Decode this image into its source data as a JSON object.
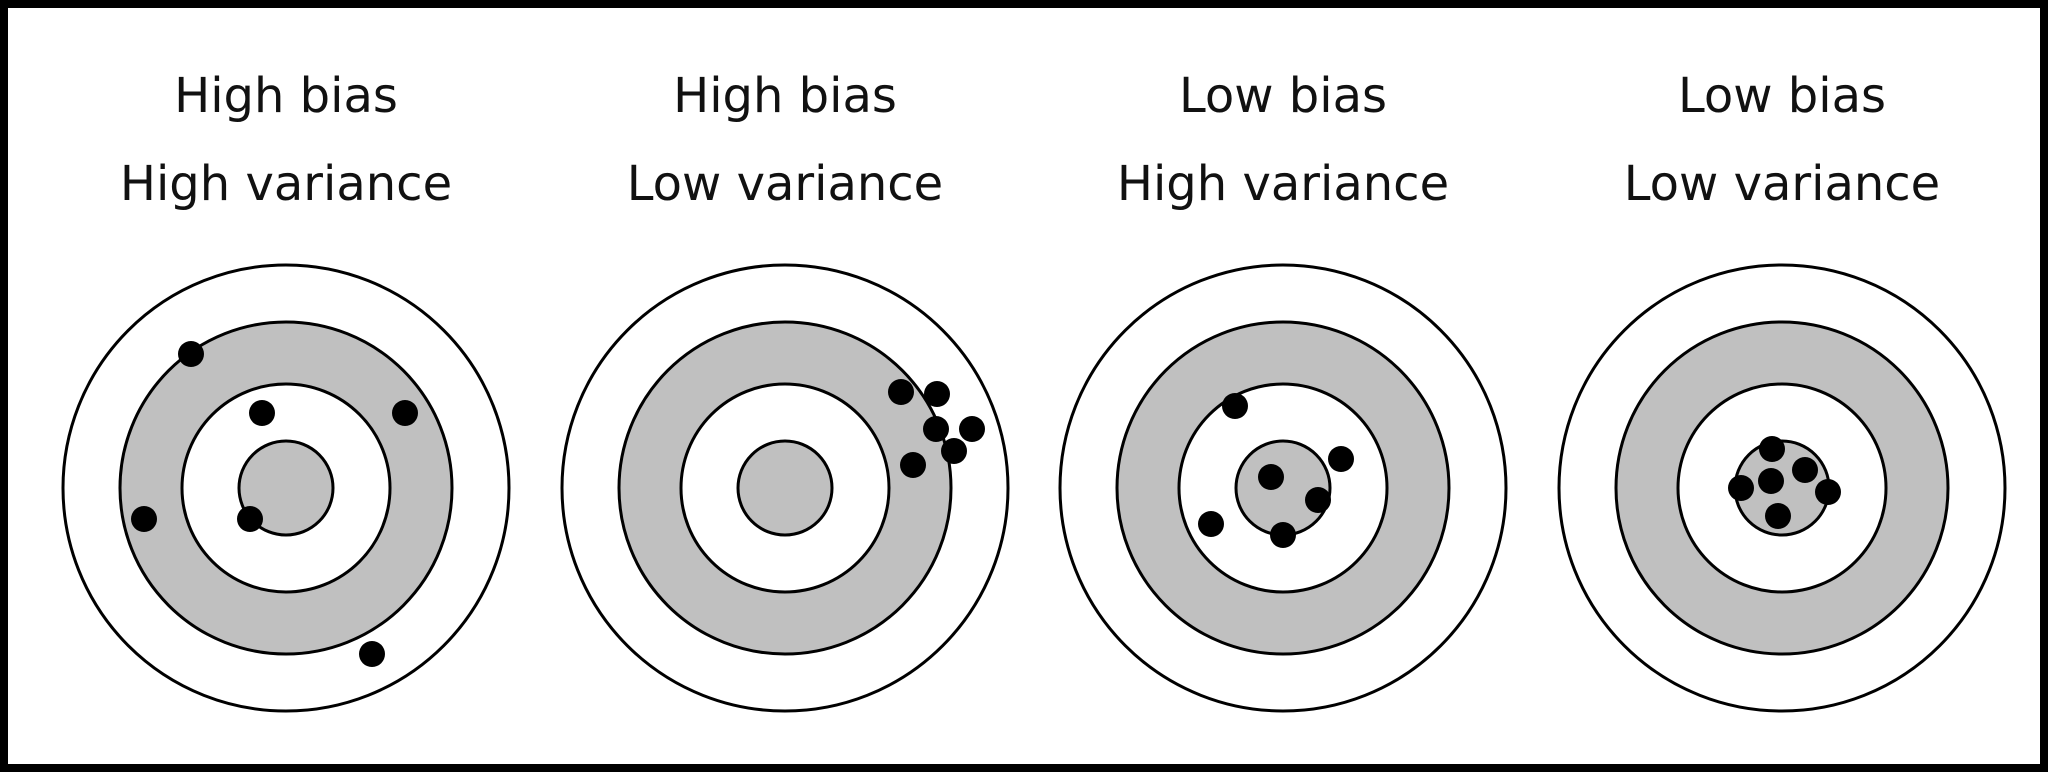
{
  "panels": [
    {
      "bias_label": "High bias",
      "variance_label": "High variance",
      "hits": [
        [
          -95,
          -134
        ],
        [
          -24,
          -75
        ],
        [
          119,
          -75
        ],
        [
          -142,
          31
        ],
        [
          -36,
          31
        ],
        [
          86,
          166
        ]
      ]
    },
    {
      "bias_label": "High bias",
      "variance_label": "Low variance",
      "hits": [
        [
          116,
          -96
        ],
        [
          152,
          -94
        ],
        [
          151,
          -59
        ],
        [
          187,
          -59
        ],
        [
          169,
          -37
        ],
        [
          128,
          -23
        ]
      ]
    },
    {
      "bias_label": "Low bias",
      "variance_label": "High variance",
      "hits": [
        [
          -48,
          -82
        ],
        [
          -12,
          -11
        ],
        [
          58,
          -29
        ],
        [
          35,
          12
        ],
        [
          -72,
          36
        ],
        [
          0,
          47
        ]
      ]
    },
    {
      "bias_label": "Low bias",
      "variance_label": "Low variance",
      "hits": [
        [
          -10,
          -39
        ],
        [
          -11,
          -7
        ],
        [
          23,
          -18
        ],
        [
          -41,
          0
        ],
        [
          46,
          4
        ],
        [
          -4,
          28
        ]
      ]
    }
  ],
  "colors": {
    "ring_fill_gray": "#c0c0c0",
    "ring_fill_white": "#ffffff",
    "ring_stroke": "#000000",
    "hit": "#000000"
  }
}
